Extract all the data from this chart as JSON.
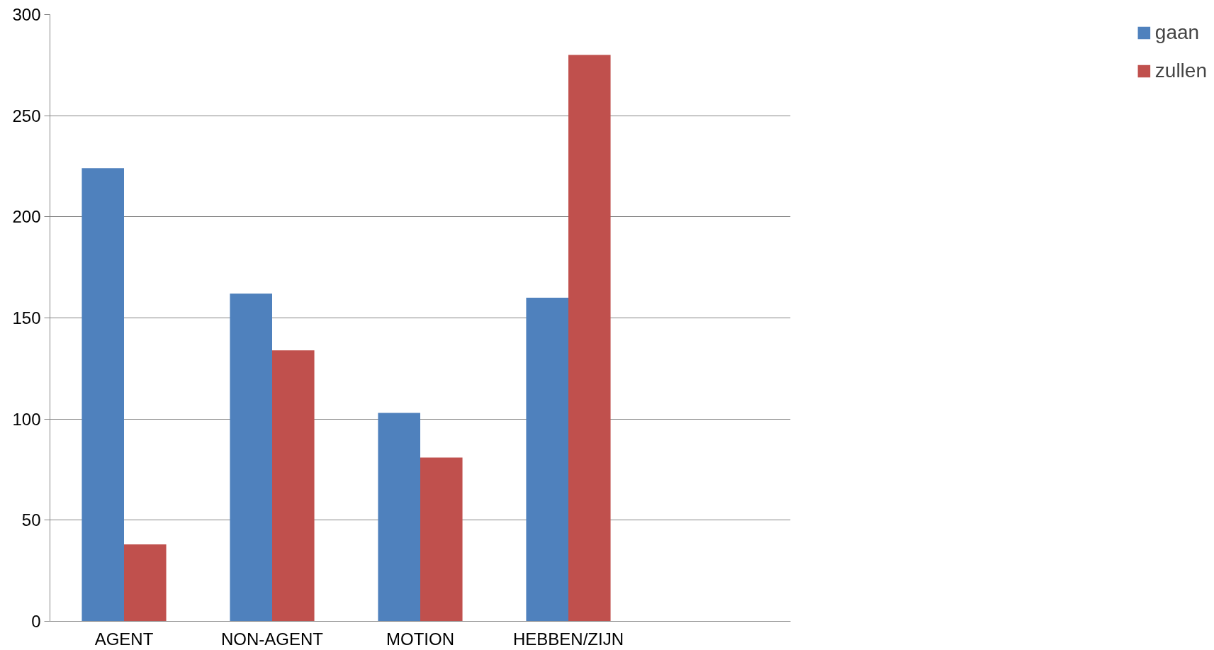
{
  "chart_data": {
    "type": "bar",
    "categories": [
      "AGENT",
      "NON-AGENT",
      "MOTION",
      "HEBBEN/ZIJN",
      null
    ],
    "series": [
      {
        "name": "gaan",
        "color": "#4f81bd",
        "values": [
          224,
          162,
          103,
          160,
          null
        ]
      },
      {
        "name": "zullen",
        "color": "#c0504d",
        "values": [
          38,
          134,
          81,
          280,
          null
        ]
      }
    ],
    "ylim": [
      0,
      300
    ],
    "yticks": [
      0,
      50,
      100,
      150,
      200,
      250,
      300
    ],
    "grid": "y",
    "legend": "right"
  }
}
